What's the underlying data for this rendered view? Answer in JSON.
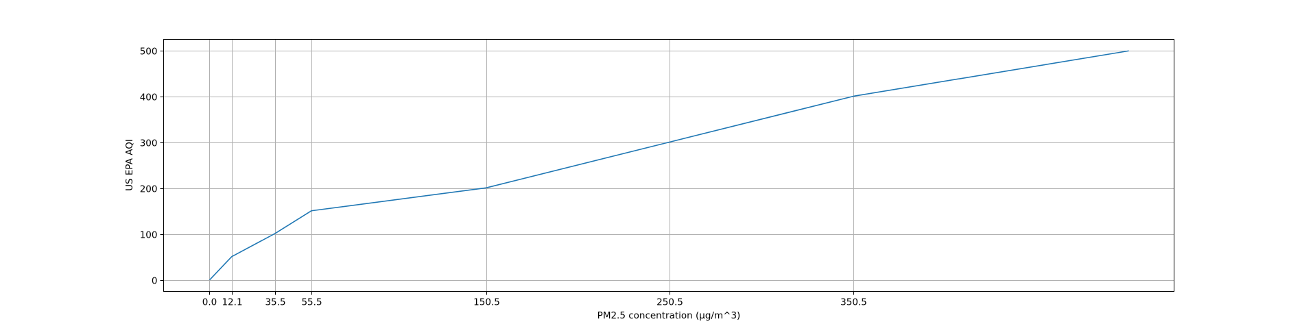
{
  "chart_data": {
    "type": "line",
    "xlabel": "PM2.5 concentration (µg/m^3)",
    "ylabel": "US EPA AQI",
    "xlim": [
      -25,
      525
    ],
    "ylim": [
      -25,
      525
    ],
    "grid": true,
    "x_ticks": [
      0.0,
      12.1,
      35.5,
      55.5,
      150.5,
      250.5,
      350.5
    ],
    "x_tick_labels": [
      "0.0",
      "12.1",
      "35.5",
      "55.5",
      "150.5",
      "250.5",
      "350.5"
    ],
    "y_ticks": [
      0,
      100,
      200,
      300,
      400,
      500
    ],
    "y_tick_labels": [
      "0",
      "100",
      "200",
      "300",
      "400",
      "500"
    ],
    "series": [
      {
        "color": "#1f77b4",
        "x": [
          0.0,
          12.1,
          35.5,
          55.5,
          150.5,
          250.5,
          350.5,
          500.4
        ],
        "y": [
          0,
          51,
          101,
          151,
          201,
          301,
          401,
          500
        ]
      }
    ]
  }
}
